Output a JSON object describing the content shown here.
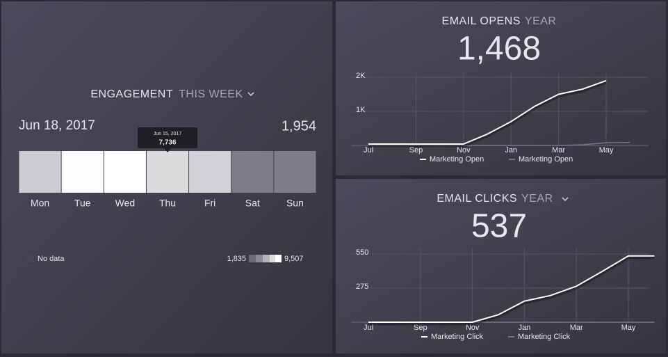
{
  "chart_data": [
    {
      "type": "heatmap",
      "title": "ENGAGEMENT",
      "subtitle": "THIS WEEK",
      "date": "Jun 18, 2017",
      "total": "1,954",
      "categories": [
        "Mon",
        "Tue",
        "Wed",
        "Thu",
        "Fri",
        "Sat",
        "Sun"
      ],
      "values": [
        7000,
        9400,
        9507,
        7736,
        7300,
        3000,
        3050
      ],
      "tooltip": {
        "date": "Jun 15, 2017",
        "label": "7,736"
      },
      "no_data_label": "No data",
      "scale": [
        {
          "value": 1835,
          "label": "1,835"
        },
        {
          "value": 9507,
          "label": "9,507"
        }
      ],
      "colors": [
        "#646472",
        "#ffffff"
      ]
    },
    {
      "type": "line",
      "title": "EMAIL OPENS",
      "subtitle": "YEAR",
      "total": "1,468",
      "categories": [
        "Jul",
        null,
        "Sep",
        null,
        "Nov",
        null,
        "Jan",
        null,
        "Mar",
        null,
        "May",
        null
      ],
      "series": [
        {
          "name": "Marketing Open",
          "color": "#ffffff",
          "values": [
            40,
            40,
            40,
            40,
            40,
            330,
            700,
            1150,
            1500,
            1650,
            1900,
            null
          ]
        },
        {
          "name": "Marketing Open",
          "color": "#77778a",
          "values": [
            0,
            0,
            0,
            0,
            0,
            0,
            0,
            0,
            0,
            20,
            80,
            90
          ]
        }
      ],
      "ylim": [
        0,
        2000
      ],
      "yticks": [
        {
          "value": 1000,
          "label": "1K"
        },
        {
          "value": 2000,
          "label": "2K"
        }
      ],
      "grid": true
    },
    {
      "type": "line",
      "title": "EMAIL CLICKS",
      "subtitle": "YEAR",
      "total": "537",
      "categories": [
        "Jul",
        null,
        "Sep",
        null,
        "Nov",
        null,
        "Jan",
        null,
        "Mar",
        null,
        "May",
        null
      ],
      "series": [
        {
          "name": "Marketing Click",
          "color": "#ffffff",
          "values": [
            0,
            0,
            0,
            0,
            0,
            60,
            170,
            215,
            290,
            410,
            535,
            535
          ]
        },
        {
          "name": "Marketing Click",
          "color": "#77778a",
          "values": [
            0,
            0,
            0,
            0,
            0,
            0,
            0,
            0,
            0,
            0,
            0,
            0
          ]
        }
      ],
      "ylim": [
        0,
        550
      ],
      "yticks": [
        275,
        550
      ],
      "grid": true
    }
  ]
}
